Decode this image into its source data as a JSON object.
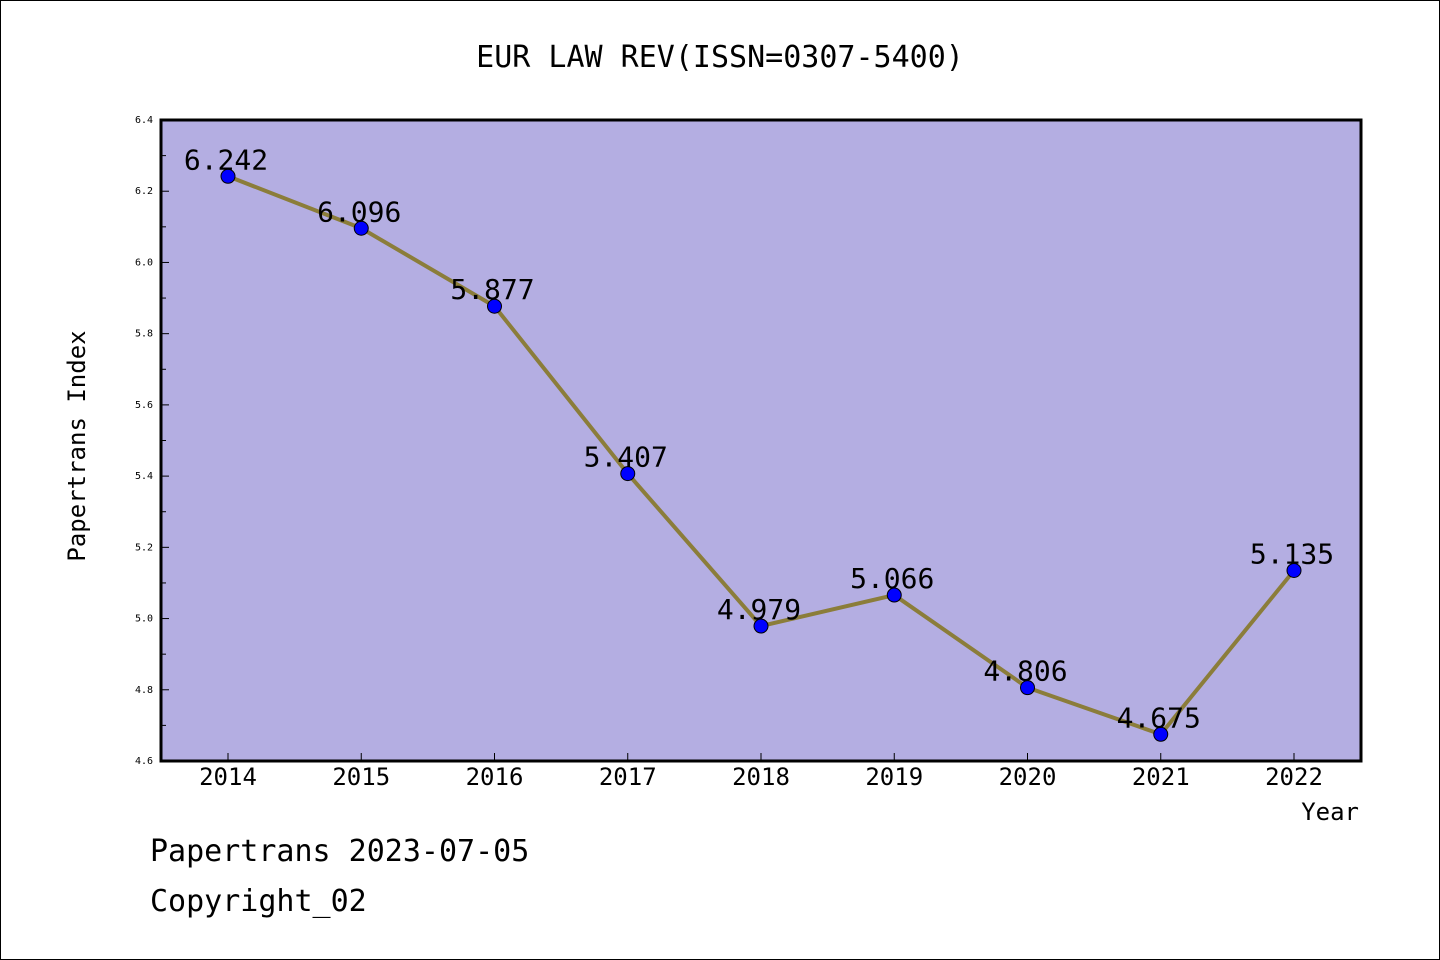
{
  "chart_data": {
    "type": "line",
    "title": "EUR LAW REV(ISSN=0307-5400)",
    "xlabel": "Year",
    "ylabel": "Papertrans Index",
    "categories": [
      "2014",
      "2015",
      "2016",
      "2017",
      "2018",
      "2019",
      "2020",
      "2021",
      "2022"
    ],
    "series": [
      {
        "values": [
          6.242,
          6.096,
          5.877,
          5.407,
          4.979,
          5.066,
          4.806,
          4.675,
          5.135
        ],
        "labels": [
          "6.242",
          "6.096",
          "5.877",
          "5.407",
          "4.979",
          "5.066",
          "4.806",
          "4.675",
          "5.135"
        ]
      }
    ],
    "ylim": [
      4.6,
      6.4
    ],
    "yticks": [
      "4.6",
      "4.8",
      "5.0",
      "5.2",
      "5.4",
      "5.6",
      "5.8",
      "6.0",
      "6.2",
      "6.4"
    ],
    "grid": false,
    "colors": {
      "plot_background": "#b4aee2",
      "line": "#8b7d3a",
      "marker": "#0000ff"
    }
  },
  "footer": {
    "line1": "Papertrans 2023-07-05",
    "line2": "Copyright_02"
  }
}
